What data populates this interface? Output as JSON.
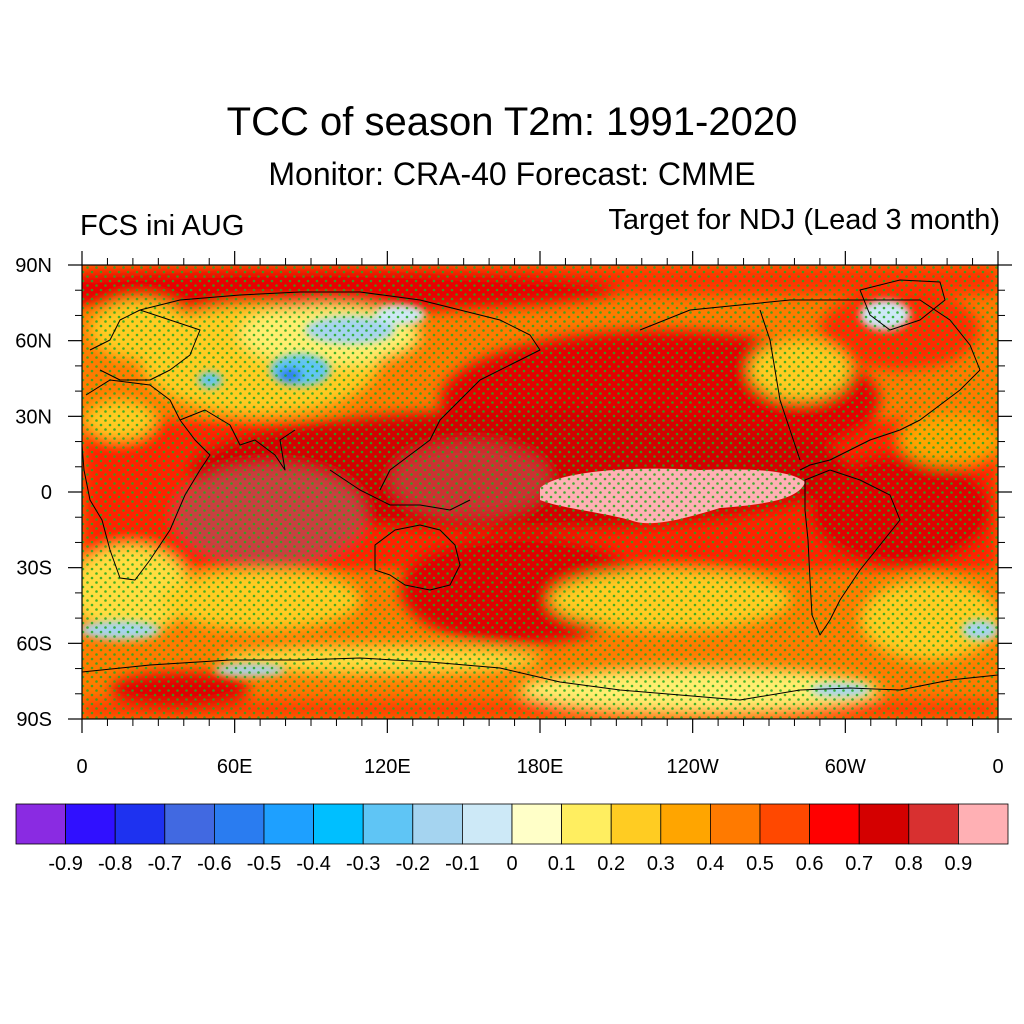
{
  "header": {
    "title": "TCC of season T2m: 1991-2020",
    "subtitle": "Monitor: CRA-40   Forecast: CMME",
    "left_label": "FCS ini AUG",
    "right_label": "Target for NDJ (Lead 3 month)"
  },
  "map": {
    "projection": "cylindrical-equidistant",
    "lat_ticks": [
      "90N",
      "60N",
      "30N",
      "0",
      "30S",
      "60S",
      "90S"
    ],
    "lon_ticks": [
      "0",
      "60E",
      "120E",
      "180E",
      "120W",
      "60W",
      "0"
    ],
    "stipple_color": "#22aa22",
    "coast_color": "#000000"
  },
  "colorbar": {
    "colors": [
      "#8a2be2",
      "#3010ff",
      "#1e32f0",
      "#4169e1",
      "#2a7cf0",
      "#1ea0ff",
      "#00bfff",
      "#5fc5f5",
      "#a5d4f0",
      "#cde9f7",
      "#ffffc8",
      "#ffee60",
      "#ffcc22",
      "#ffa500",
      "#ff7a00",
      "#ff4800",
      "#ff0000",
      "#d40000",
      "#d83030",
      "#ffb0b4"
    ],
    "labels": [
      "-0.9",
      "-0.8",
      "-0.7",
      "-0.6",
      "-0.5",
      "-0.4",
      "-0.3",
      "-0.2",
      "-0.1",
      "0",
      "0.1",
      "0.2",
      "0.3",
      "0.4",
      "0.5",
      "0.6",
      "0.7",
      "0.8",
      "0.9"
    ]
  }
}
